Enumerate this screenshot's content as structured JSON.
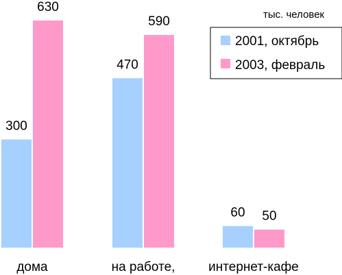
{
  "chart_data": {
    "type": "bar",
    "unit_label": "тыс. человек",
    "categories": [
      "дома",
      "на работе,",
      "интернет-кафе"
    ],
    "series": [
      {
        "name": "2001, октябрь",
        "color": "#a6d0ff",
        "values": [
          300,
          470,
          60
        ]
      },
      {
        "name": "2003, февраль",
        "color": "#ff99c9",
        "values": [
          630,
          590,
          50
        ]
      }
    ],
    "value_labels": [
      [
        "300",
        "470",
        "60"
      ],
      [
        "630",
        "590",
        "50"
      ]
    ],
    "ylim": [
      0,
      650
    ],
    "grid": false,
    "legend": "top-right"
  }
}
